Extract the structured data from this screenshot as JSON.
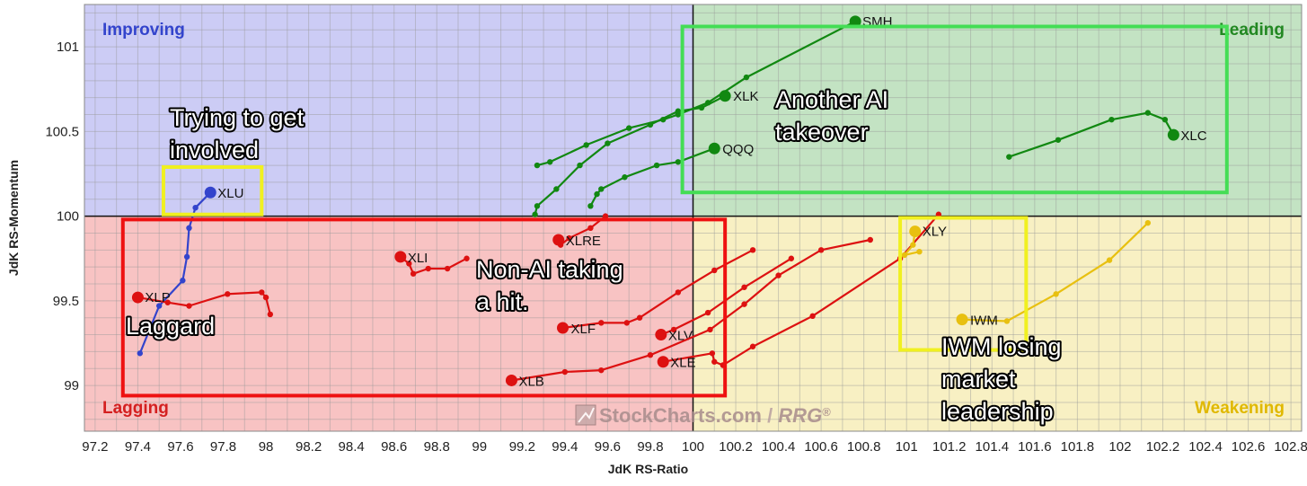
{
  "chart_data": {
    "type": "scatter",
    "style": "relative-rotation-graph",
    "xlabel": "JdK RS-Ratio",
    "ylabel": "JdK RS-Momentum",
    "xlim": [
      97.15,
      102.85
    ],
    "ylim": [
      98.73,
      101.25
    ],
    "xticks": [
      97.2,
      97.4,
      97.6,
      97.8,
      98,
      98.2,
      98.4,
      98.6,
      98.8,
      99,
      99.2,
      99.4,
      99.6,
      99.8,
      100,
      100.2,
      100.4,
      100.6,
      100.8,
      101,
      101.2,
      101.4,
      101.6,
      101.8,
      102,
      102.2,
      102.4,
      102.6,
      102.8
    ],
    "yticks": [
      99,
      99.5,
      100,
      100.5,
      101
    ],
    "xtick_labels": [
      "97.2",
      "97.4",
      "97.6",
      "97.8",
      "98",
      "98.2",
      "98.4",
      "98.6",
      "98.8",
      "99",
      "99.2",
      "99.4",
      "99.6",
      "99.8",
      "100",
      "100.2",
      "100.4",
      "100.6",
      "100.8",
      "101",
      "101.2",
      "101.4",
      "101.6",
      "101.8",
      "102",
      "102.2",
      "102.4",
      "102.6",
      "102.8"
    ],
    "ytick_labels": [
      "99",
      "99.5",
      "100",
      "100.5",
      "101"
    ],
    "grid": true,
    "center": [
      100,
      100
    ],
    "quadrants": {
      "improving": {
        "label": "Improving",
        "color": "#ccccf5",
        "text_color": "#3344cc"
      },
      "leading": {
        "label": "Leading",
        "color": "#c3e3c3",
        "text_color": "#228822"
      },
      "lagging": {
        "label": "Lagging",
        "color": "#f8c3c3",
        "text_color": "#d42020"
      },
      "weakening": {
        "label": "Weakening",
        "color": "#f8f0c3",
        "text_color": "#e0b800"
      }
    },
    "series": [
      {
        "name": "SMH",
        "color": "#118811",
        "points": [
          [
            99.27,
            100.3
          ],
          [
            99.33,
            100.32
          ],
          [
            99.5,
            100.42
          ],
          [
            99.7,
            100.52
          ],
          [
            99.86,
            100.57
          ],
          [
            99.93,
            100.6
          ],
          [
            100.07,
            100.67
          ],
          [
            100.25,
            100.82
          ],
          [
            100.76,
            101.15
          ]
        ]
      },
      {
        "name": "XLK",
        "color": "#118811",
        "points": [
          [
            99.26,
            100.01
          ],
          [
            99.27,
            100.06
          ],
          [
            99.36,
            100.16
          ],
          [
            99.47,
            100.3
          ],
          [
            99.6,
            100.43
          ],
          [
            99.8,
            100.54
          ],
          [
            99.93,
            100.62
          ],
          [
            100.04,
            100.64
          ],
          [
            100.15,
            100.71
          ]
        ]
      },
      {
        "name": "QQQ",
        "color": "#118811",
        "points": [
          [
            99.52,
            100.06
          ],
          [
            99.55,
            100.13
          ],
          [
            99.57,
            100.16
          ],
          [
            99.68,
            100.23
          ],
          [
            99.83,
            100.3
          ],
          [
            99.93,
            100.32
          ],
          [
            100.1,
            100.4
          ]
        ]
      },
      {
        "name": "XLC",
        "color": "#118811",
        "points": [
          [
            101.48,
            100.35
          ],
          [
            101.71,
            100.45
          ],
          [
            101.96,
            100.57
          ],
          [
            102.13,
            100.61
          ],
          [
            102.21,
            100.57
          ],
          [
            102.25,
            100.48
          ]
        ]
      },
      {
        "name": "XLU",
        "color": "#3344cc",
        "points": [
          [
            97.41,
            99.19
          ],
          [
            97.5,
            99.47
          ],
          [
            97.61,
            99.62
          ],
          [
            97.63,
            99.76
          ],
          [
            97.64,
            99.93
          ],
          [
            97.67,
            100.05
          ],
          [
            97.74,
            100.14
          ]
        ]
      },
      {
        "name": "XLP",
        "color": "#dd1111",
        "points": [
          [
            98.02,
            99.42
          ],
          [
            98.0,
            99.52
          ],
          [
            97.98,
            99.55
          ],
          [
            97.82,
            99.54
          ],
          [
            97.64,
            99.47
          ],
          [
            97.54,
            99.49
          ],
          [
            97.4,
            99.52
          ]
        ]
      },
      {
        "name": "XLI",
        "color": "#dd1111",
        "points": [
          [
            98.94,
            99.75
          ],
          [
            98.85,
            99.69
          ],
          [
            98.76,
            99.69
          ],
          [
            98.69,
            99.66
          ],
          [
            98.67,
            99.72
          ],
          [
            98.63,
            99.76
          ]
        ]
      },
      {
        "name": "XLRE",
        "color": "#dd1111",
        "points": [
          [
            99.59,
            100.0
          ],
          [
            99.52,
            99.93
          ],
          [
            99.42,
            99.87
          ],
          [
            99.38,
            99.83
          ],
          [
            99.37,
            99.86
          ]
        ]
      },
      {
        "name": "XLF",
        "color": "#dd1111",
        "points": [
          [
            100.28,
            99.8
          ],
          [
            100.1,
            99.68
          ],
          [
            99.93,
            99.55
          ],
          [
            99.75,
            99.4
          ],
          [
            99.69,
            99.37
          ],
          [
            99.57,
            99.37
          ],
          [
            99.39,
            99.34
          ]
        ]
      },
      {
        "name": "XLV",
        "color": "#dd1111",
        "points": [
          [
            100.46,
            99.75
          ],
          [
            100.24,
            99.58
          ],
          [
            100.07,
            99.43
          ],
          [
            99.91,
            99.33
          ],
          [
            99.85,
            99.3
          ]
        ]
      },
      {
        "name": "XLB",
        "color": "#dd1111",
        "points": [
          [
            100.83,
            99.86
          ],
          [
            100.6,
            99.8
          ],
          [
            100.4,
            99.65
          ],
          [
            100.24,
            99.48
          ],
          [
            100.08,
            99.33
          ],
          [
            99.8,
            99.18
          ],
          [
            99.57,
            99.09
          ],
          [
            99.4,
            99.08
          ],
          [
            99.15,
            99.03
          ]
        ]
      },
      {
        "name": "XLE",
        "color": "#dd1111",
        "points": [
          [
            101.15,
            100.01
          ],
          [
            100.97,
            99.75
          ],
          [
            100.56,
            99.41
          ],
          [
            100.28,
            99.23
          ],
          [
            100.14,
            99.12
          ],
          [
            100.1,
            99.14
          ],
          [
            100.09,
            99.19
          ],
          [
            99.86,
            99.14
          ]
        ]
      },
      {
        "name": "XLY",
        "color": "#e8c010",
        "points": [
          [
            101.06,
            99.79
          ],
          [
            100.99,
            99.77
          ],
          [
            101.03,
            99.83
          ],
          [
            101.04,
            99.91
          ]
        ]
      },
      {
        "name": "IWM",
        "color": "#e8c010",
        "points": [
          [
            102.13,
            99.96
          ],
          [
            101.95,
            99.74
          ],
          [
            101.7,
            99.54
          ],
          [
            101.47,
            99.38
          ],
          [
            101.26,
            99.39
          ]
        ]
      }
    ],
    "callouts": [
      {
        "id": "involved",
        "text": [
          "Trying to get",
          "involved"
        ]
      },
      {
        "id": "takeover",
        "text": [
          "Another AI",
          "takeover"
        ]
      },
      {
        "id": "nonai",
        "text": [
          "Non-AI taking",
          "a hit."
        ]
      },
      {
        "id": "laggard",
        "text": [
          "Laggard"
        ]
      },
      {
        "id": "iwm",
        "text": [
          "IWM losing",
          "market",
          "leadership"
        ]
      }
    ],
    "highlight_boxes": [
      {
        "id": "xlu-box",
        "color": "#f0f020",
        "x": [
          97.52,
          97.98
        ],
        "y": [
          100.01,
          100.29
        ]
      },
      {
        "id": "leading-box",
        "color": "#44dd55",
        "x": [
          99.95,
          102.5
        ],
        "y": [
          100.14,
          101.12
        ]
      },
      {
        "id": "lagging-box",
        "color": "#ee1111",
        "x": [
          97.33,
          100.15
        ],
        "y": [
          98.94,
          99.98
        ]
      },
      {
        "id": "iwm-box",
        "color": "#f0f020",
        "x": [
          100.97,
          101.56
        ],
        "y": [
          99.21,
          99.99
        ]
      }
    ],
    "watermark": {
      "text": "StockCharts.com",
      "separator": "/",
      "suffix": "RRG",
      "mark": "®"
    }
  }
}
